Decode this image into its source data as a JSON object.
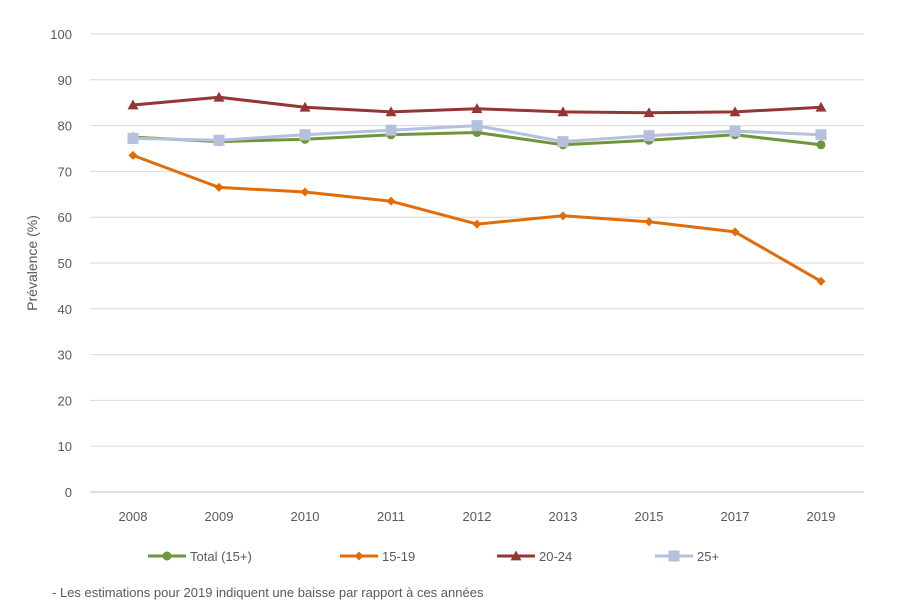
{
  "chart_data": {
    "type": "line",
    "categories": [
      "2008",
      "2009",
      "2010",
      "2011",
      "2012",
      "2013",
      "2015",
      "2017",
      "2019"
    ],
    "series": [
      {
        "name": "Total (15+)",
        "color": "#70963b",
        "marker": "circle",
        "values": [
          77.5,
          76.5,
          77.0,
          78.0,
          78.5,
          75.8,
          76.8,
          78.0,
          75.8
        ]
      },
      {
        "name": "15-19",
        "color": "#e36c0a",
        "marker": "diamond",
        "values": [
          73.5,
          66.5,
          65.5,
          63.5,
          58.5,
          60.3,
          59.0,
          56.8,
          46.0
        ]
      },
      {
        "name": "20-24",
        "color": "#943634",
        "marker": "triangle",
        "values": [
          84.5,
          86.2,
          84.0,
          83.0,
          83.7,
          83.0,
          82.8,
          83.0,
          84.0
        ]
      },
      {
        "name": "25+",
        "color": "#b4c0dc",
        "marker": "square",
        "values": [
          77.2,
          76.8,
          78.0,
          79.0,
          80.0,
          76.5,
          77.8,
          78.8,
          78.0
        ]
      }
    ],
    "ylabel": "Prévalence (%)",
    "xlabel": "",
    "ylim": [
      0,
      100
    ],
    "yticks": [
      0,
      10,
      20,
      30,
      40,
      50,
      60,
      70,
      80,
      90,
      100
    ],
    "grid": true,
    "legend": "bottom"
  },
  "footnote": "- Les estimations pour 2019 indiquent une baisse par rapport à ces années"
}
